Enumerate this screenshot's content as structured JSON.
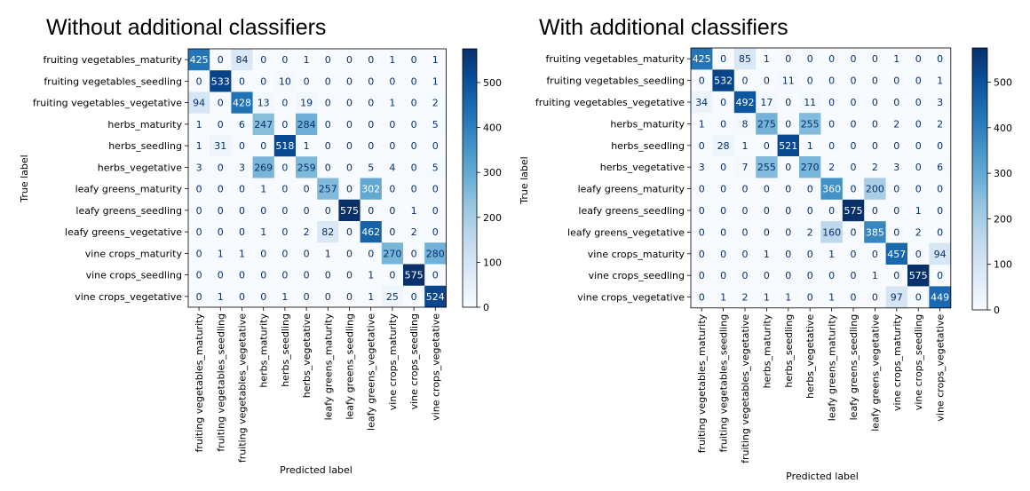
{
  "chart_data": [
    {
      "type": "heatmap",
      "title": "Without additional classifiers",
      "xlabel": "Predicted label",
      "ylabel": "True label",
      "labels": [
        "fruiting vegetables_maturity",
        "fruiting vegetables_seedling",
        "fruiting vegetables_vegetative",
        "herbs_maturity",
        "herbs_seedling",
        "herbs_vegetative",
        "leafy greens_maturity",
        "leafy greens_seedling",
        "leafy greens_vegetative",
        "vine crops_maturity",
        "vine crops_seedling",
        "vine crops_vegetative"
      ],
      "matrix": [
        [
          425,
          0,
          84,
          0,
          0,
          1,
          0,
          0,
          0,
          1,
          0,
          1
        ],
        [
          0,
          533,
          0,
          0,
          10,
          0,
          0,
          0,
          0,
          0,
          0,
          1
        ],
        [
          94,
          0,
          428,
          13,
          0,
          19,
          0,
          0,
          0,
          1,
          0,
          2
        ],
        [
          1,
          0,
          6,
          247,
          0,
          284,
          0,
          0,
          0,
          0,
          0,
          5
        ],
        [
          1,
          31,
          0,
          0,
          518,
          1,
          0,
          0,
          0,
          0,
          0,
          0
        ],
        [
          3,
          0,
          3,
          269,
          0,
          259,
          0,
          0,
          5,
          4,
          0,
          5
        ],
        [
          0,
          0,
          0,
          1,
          0,
          0,
          257,
          0,
          302,
          0,
          0,
          0
        ],
        [
          0,
          0,
          0,
          0,
          0,
          0,
          0,
          575,
          0,
          0,
          1,
          0
        ],
        [
          0,
          0,
          0,
          1,
          0,
          2,
          82,
          0,
          462,
          0,
          2,
          0
        ],
        [
          0,
          1,
          1,
          0,
          0,
          0,
          1,
          0,
          0,
          270,
          0,
          280
        ],
        [
          0,
          0,
          0,
          0,
          0,
          0,
          0,
          0,
          1,
          0,
          575,
          0
        ],
        [
          0,
          1,
          0,
          0,
          1,
          0,
          0,
          0,
          1,
          25,
          0,
          524
        ]
      ],
      "colorbar": {
        "min": 0,
        "max": 575,
        "ticks": [
          0,
          100,
          200,
          300,
          400,
          500
        ],
        "colormap": "Blues"
      }
    },
    {
      "type": "heatmap",
      "title": "With additional classifiers",
      "xlabel": "Predicted label",
      "ylabel": "True label",
      "labels": [
        "fruiting vegetables_maturity",
        "fruiting vegetables_seedling",
        "fruiting vegetables_vegetative",
        "herbs_maturity",
        "herbs_seedling",
        "herbs_vegetative",
        "leafy greens_maturity",
        "leafy greens_seedling",
        "leafy greens_vegetative",
        "vine crops_maturity",
        "vine crops_seedling",
        "vine crops_vegetative"
      ],
      "matrix": [
        [
          425,
          0,
          85,
          1,
          0,
          0,
          0,
          0,
          0,
          1,
          0,
          0
        ],
        [
          0,
          532,
          0,
          0,
          11,
          0,
          0,
          0,
          0,
          0,
          0,
          1
        ],
        [
          34,
          0,
          492,
          17,
          0,
          11,
          0,
          0,
          0,
          0,
          0,
          3
        ],
        [
          1,
          0,
          8,
          275,
          0,
          255,
          0,
          0,
          0,
          2,
          0,
          2
        ],
        [
          0,
          28,
          1,
          0,
          521,
          1,
          0,
          0,
          0,
          0,
          0,
          0
        ],
        [
          3,
          0,
          7,
          255,
          0,
          270,
          2,
          0,
          2,
          3,
          0,
          6
        ],
        [
          0,
          0,
          0,
          0,
          0,
          0,
          360,
          0,
          200,
          0,
          0,
          0
        ],
        [
          0,
          0,
          0,
          0,
          0,
          0,
          0,
          575,
          0,
          0,
          1,
          0
        ],
        [
          0,
          0,
          0,
          0,
          0,
          2,
          160,
          0,
          385,
          0,
          2,
          0
        ],
        [
          0,
          0,
          0,
          1,
          0,
          0,
          1,
          0,
          0,
          457,
          0,
          94
        ],
        [
          0,
          0,
          0,
          0,
          0,
          0,
          0,
          0,
          1,
          0,
          575,
          0
        ],
        [
          0,
          1,
          2,
          1,
          1,
          0,
          1,
          0,
          0,
          97,
          0,
          449
        ]
      ],
      "colorbar": {
        "min": 0,
        "max": 575,
        "ticks": [
          0,
          100,
          200,
          300,
          400,
          500
        ],
        "colormap": "Blues"
      }
    }
  ]
}
